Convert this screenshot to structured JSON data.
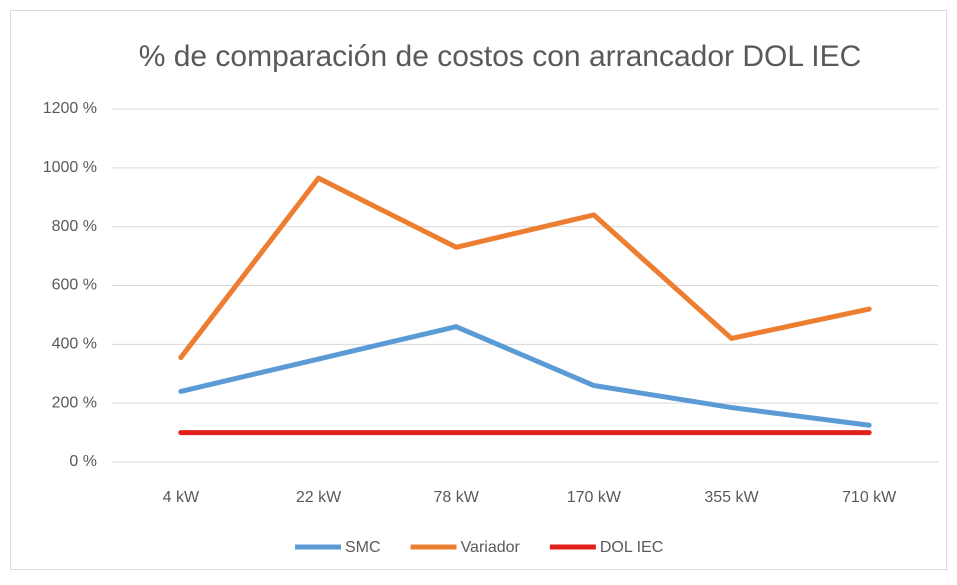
{
  "chart_data": {
    "type": "line",
    "title": "% de comparación de costos con arrancador DOL IEC",
    "categories": [
      "4 kW",
      "22 kW",
      "78 kW",
      "170 kW",
      "355 kW",
      "710 kW"
    ],
    "series": [
      {
        "name": "SMC",
        "color": "#5b9bd5",
        "values": [
          240,
          350,
          460,
          260,
          185,
          125
        ]
      },
      {
        "name": "Variador",
        "color": "#ed7d31",
        "values": [
          355,
          965,
          730,
          840,
          420,
          520
        ]
      },
      {
        "name": "DOL IEC",
        "color": "#e3201b",
        "values": [
          100,
          100,
          100,
          100,
          100,
          100
        ]
      }
    ],
    "ylim": [
      0,
      1200
    ],
    "yticks": [
      {
        "value": 0,
        "label": "0 %"
      },
      {
        "value": 200,
        "label": "200 %"
      },
      {
        "value": 400,
        "label": "400 %"
      },
      {
        "value": 600,
        "label": "600 %"
      },
      {
        "value": 800,
        "label": "800 %"
      },
      {
        "value": 1000,
        "label": "1000 %"
      },
      {
        "value": 1200,
        "label": "1200 %"
      }
    ],
    "grid": true,
    "legend": "bottom"
  }
}
